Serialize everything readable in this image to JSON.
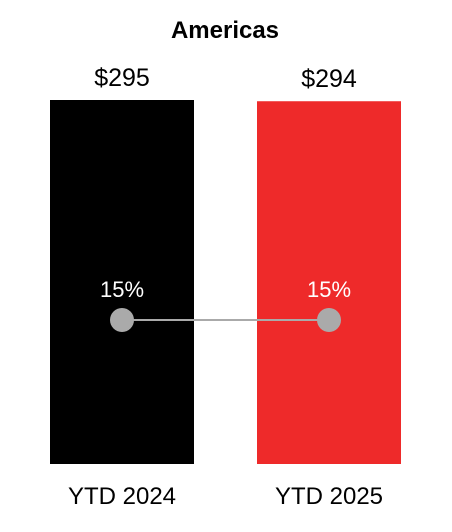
{
  "chart_data": {
    "type": "bar",
    "title": "Americas",
    "categories": [
      "YTD 2024",
      "YTD 2025"
    ],
    "values": [
      295,
      294
    ],
    "value_labels": [
      "$295",
      "$294"
    ],
    "bar_colors": [
      "#000000",
      "#ee2a2a"
    ],
    "ylim": [
      0,
      295
    ],
    "overlay_line": {
      "type": "line",
      "values": [
        15,
        15
      ],
      "labels": [
        "15%",
        "15%"
      ],
      "color": "#aaaaaa"
    },
    "grid": false,
    "legend": "none"
  }
}
